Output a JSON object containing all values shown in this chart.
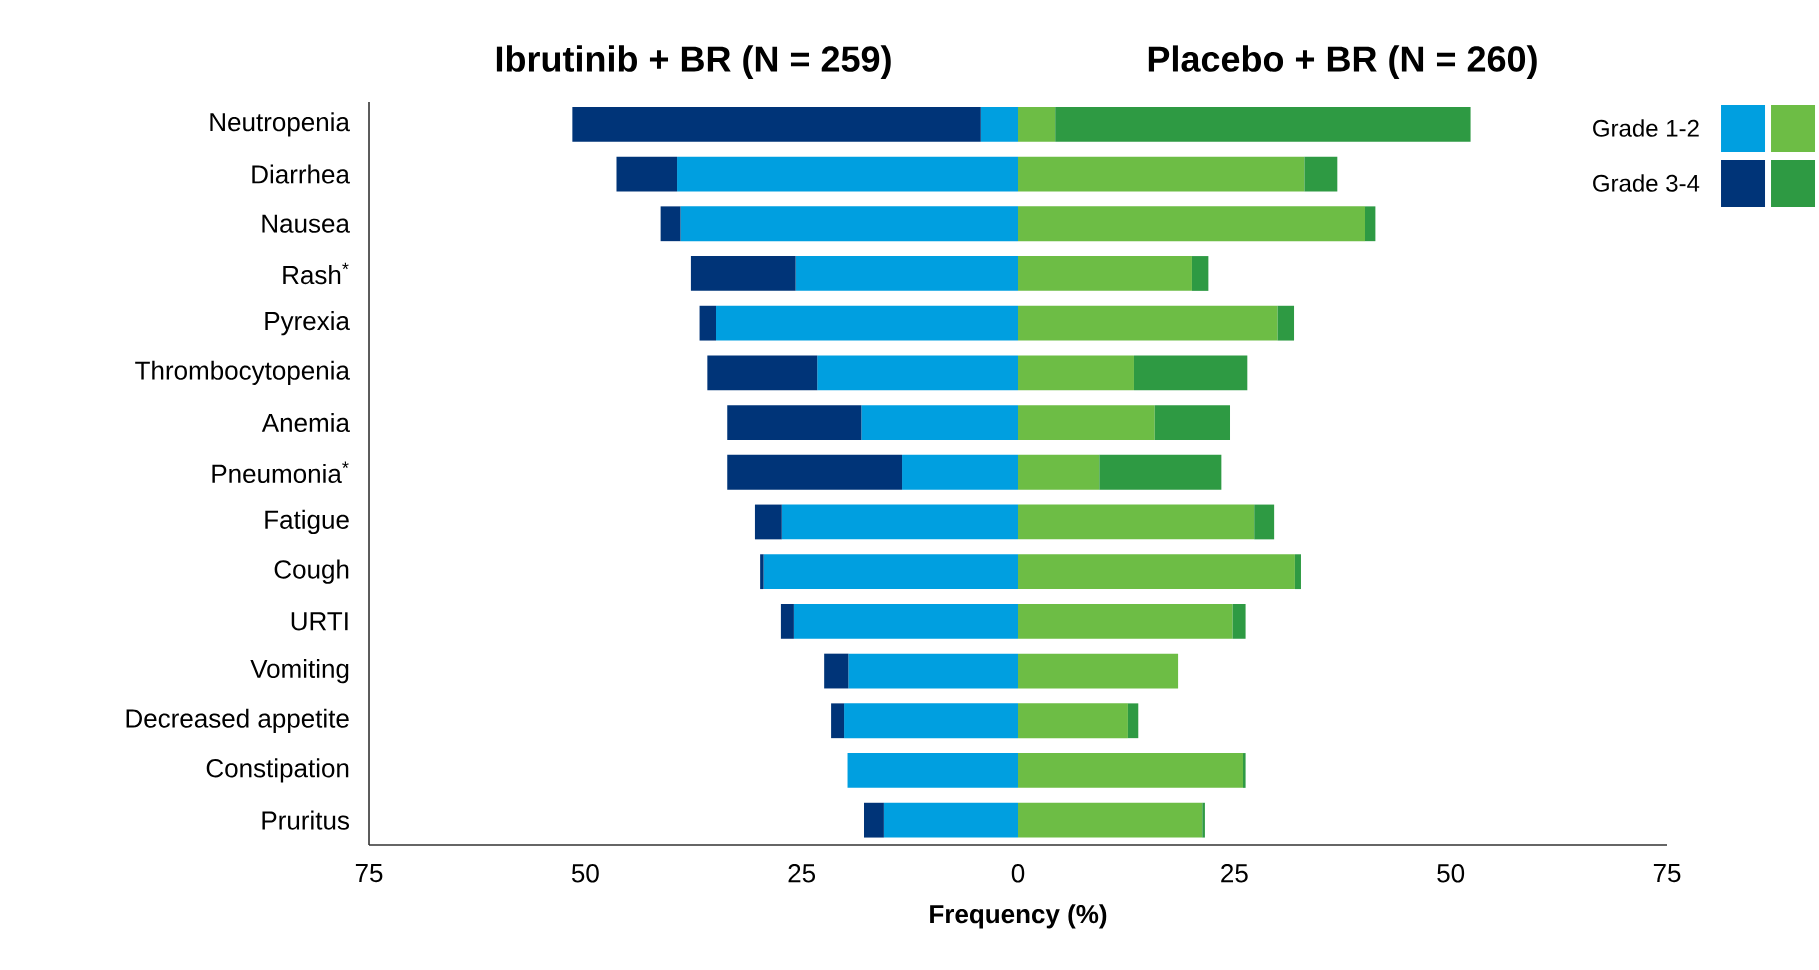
{
  "chart_data": {
    "type": "bar",
    "orientation": "horizontal",
    "stacked": true,
    "annotations": [
      "Ibrutinib + BR (N = 259)",
      "Placebo + BR (N = 260)"
    ],
    "xlabel": "Frequency (%)",
    "categories": [
      "Neutropenia",
      "Diarrhea",
      "Nausea",
      "Rash$^{*}$",
      "Pyrexia",
      "Thrombocytopenia",
      "Anemia",
      "Pneumonia$^{*}$",
      "Fatigue",
      "Cough",
      "URTI",
      "Vomiting",
      "Decreased appetite",
      "Constipation",
      "Pruritus"
    ],
    "series": [
      {
        "name": "Grade 1-2",
        "color": "#009fe0",
        "values": [
          -4.3,
          -39.4,
          -39.0,
          -25.7,
          -34.9,
          -23.2,
          -18.1,
          -13.4,
          -27.3,
          -29.4,
          -25.9,
          -19.6,
          -20.1,
          -19.7,
          -15.5
        ]
      },
      {
        "name": "Grade 3-4",
        "color": "#003478",
        "values": [
          -47.2,
          -7.0,
          -2.3,
          -12.1,
          -1.9,
          -12.7,
          -15.5,
          -20.2,
          -3.1,
          -0.4,
          -1.5,
          -2.8,
          -1.5,
          0,
          -2.3
        ]
      },
      {
        "color": "#6dbd45",
        "values": [
          4.3,
          33.1,
          40.1,
          20.1,
          30.0,
          13.4,
          15.8,
          9.4,
          27.3,
          32.0,
          24.8,
          18.5,
          12.7,
          26.0,
          21.3
        ]
      },
      {
        "color": "#2e9a43",
        "values": [
          48.0,
          3.8,
          1.2,
          1.9,
          1.9,
          13.1,
          8.7,
          14.1,
          2.3,
          0.7,
          1.5,
          0,
          1.2,
          0.3,
          0.3
        ]
      }
    ],
    "xlim": [
      -75,
      75
    ],
    "xticks": [
      {
        "value": -75,
        "label": "75"
      },
      {
        "value": -50,
        "label": "50"
      },
      {
        "value": -25,
        "label": "25"
      },
      0,
      25,
      50,
      75
    ],
    "legend": "top right"
  }
}
